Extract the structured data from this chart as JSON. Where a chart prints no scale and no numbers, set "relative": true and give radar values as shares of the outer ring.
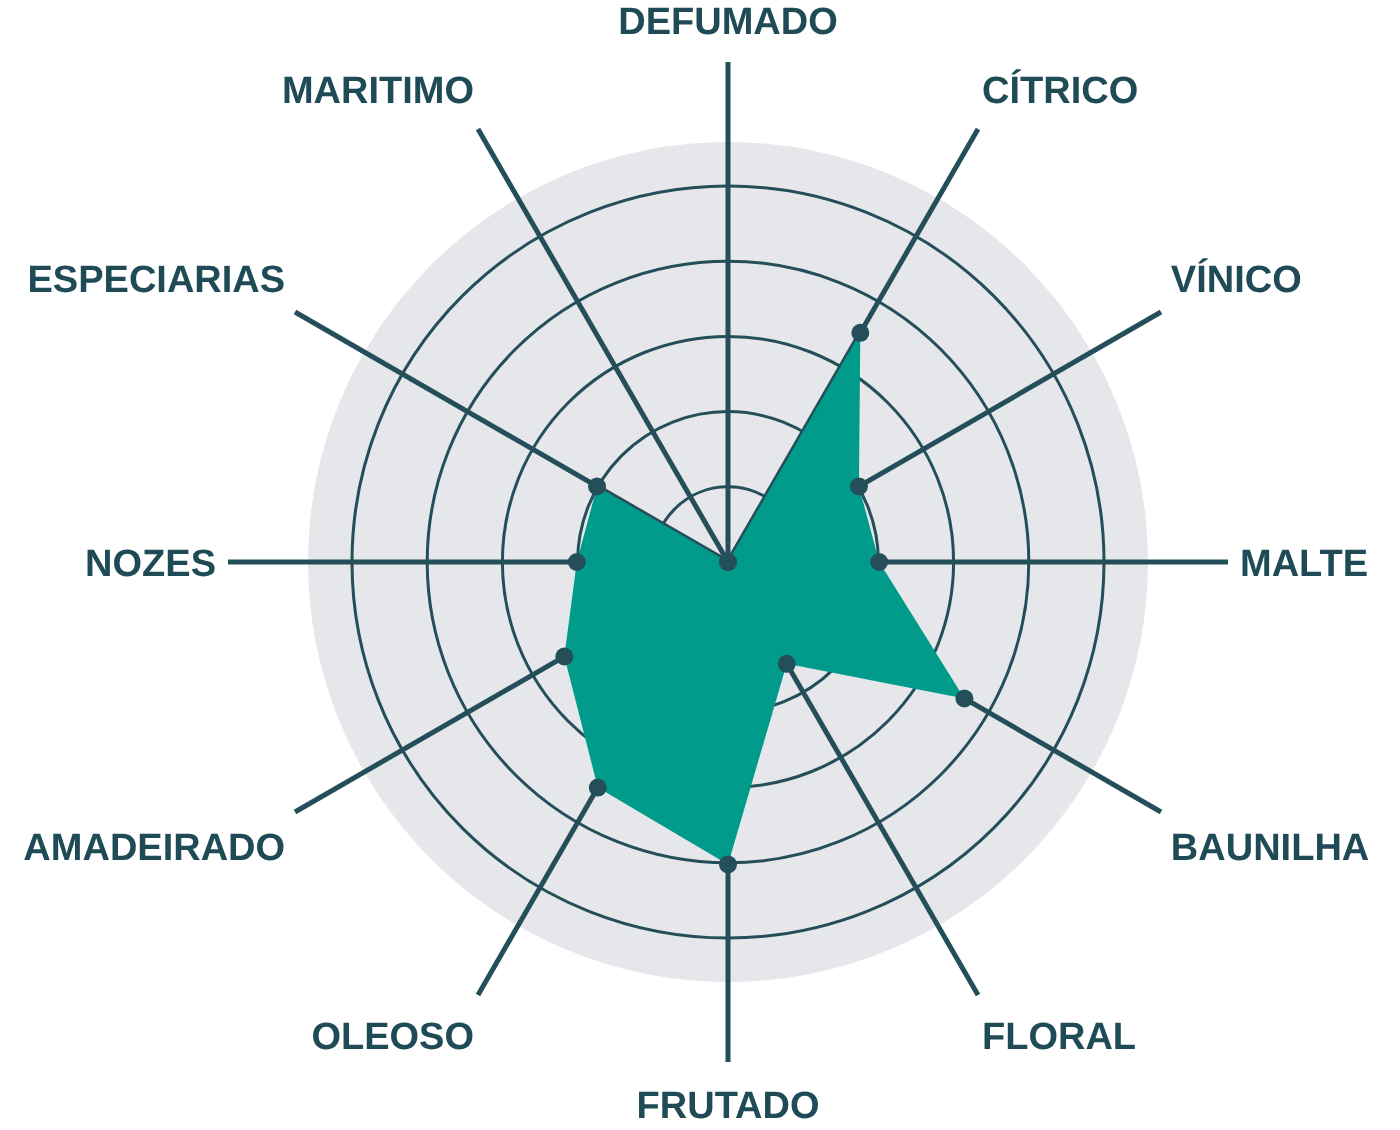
{
  "chart_data": {
    "type": "radar",
    "relative": true,
    "grid": true,
    "marker": "circle",
    "categories": [
      "DEFUMADO",
      "CÍTRICO",
      "VÍNICO",
      "MALTE",
      "BAUNILHA",
      "FLORAL",
      "FRUTADO",
      "OLEOSO",
      "AMADEIRADO",
      "NOZES",
      "ESPECIARIAS",
      "MARITIMO"
    ],
    "series": [
      {
        "color": "#009b8a",
        "values": [
          0,
          0.63,
          0.36,
          0.36,
          0.65,
          0.28,
          0.72,
          0.62,
          0.45,
          0.36,
          0.36,
          0
        ]
      }
    ]
  }
}
